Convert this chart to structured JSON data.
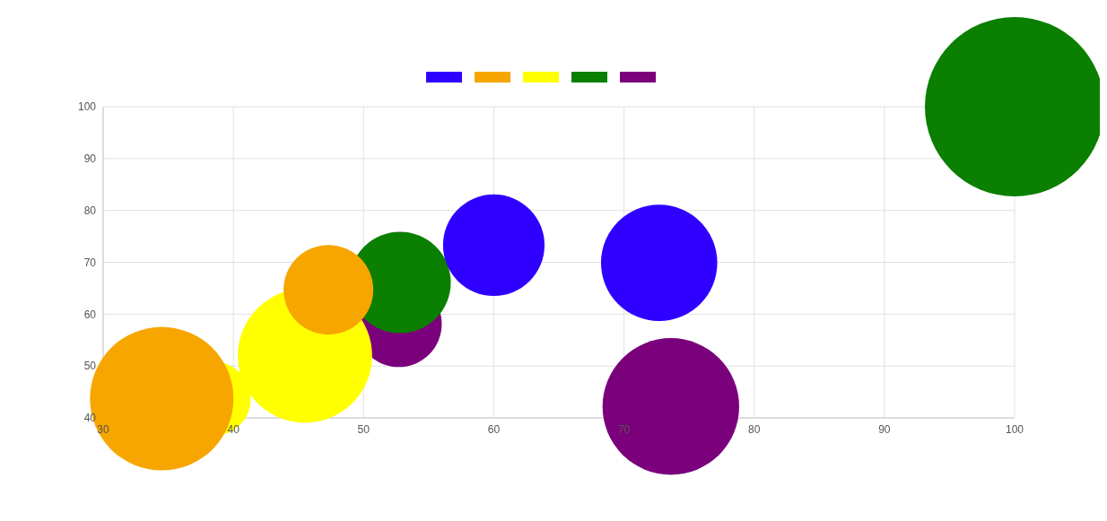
{
  "chart_data": {
    "type": "bubble",
    "series": [
      {
        "color": "#2f00ff",
        "x": [
          60,
          72.7
        ],
        "values": [
          73.3,
          69.9
        ],
        "sizes": [
          0.32,
          0.42
        ]
      },
      {
        "color": "#f7a600",
        "x": [
          34.5,
          47.3
        ],
        "values": [
          43.7,
          64.7
        ],
        "sizes": [
          0.64,
          0.25
        ]
      },
      {
        "color": "#ffff00",
        "x": [
          38.5,
          45.5
        ],
        "values": [
          43.7,
          52
        ],
        "sizes": [
          0.17,
          0.56
        ]
      },
      {
        "color": "#0a7f00",
        "x": [
          52.8,
          100
        ],
        "values": [
          66.1,
          100
        ],
        "sizes": [
          0.32,
          1
        ]
      },
      {
        "color": "#7b007b",
        "x": [
          52.7,
          73.6
        ],
        "values": [
          58.1,
          42.2
        ],
        "sizes": [
          0.23,
          0.58
        ]
      }
    ],
    "xlim": [
      30,
      100
    ],
    "xticks": [
      30,
      40,
      50,
      60,
      70,
      80,
      90,
      100
    ],
    "ylim": [
      40,
      100
    ],
    "yticks": [
      40,
      50,
      60,
      70,
      80,
      90,
      100
    ],
    "grid": true
  }
}
